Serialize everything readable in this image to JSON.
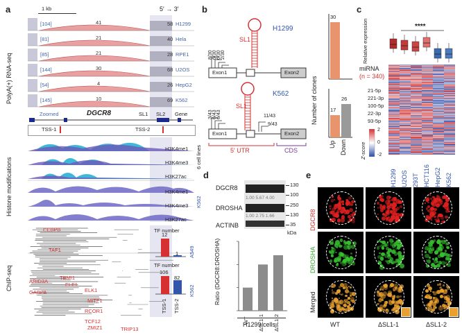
{
  "panels": {
    "a": "a",
    "b": "b",
    "c": "c",
    "d": "d",
    "e": "e"
  },
  "panel_a": {
    "scale": "1 kb",
    "direction": "5′ → 3′",
    "rnaseq_label": "PolyA(+) RNA-seq",
    "lanes": [
      {
        "range": "[104]",
        "left": "41",
        "right": "58",
        "cell": "H1299"
      },
      {
        "range": "[81]",
        "left": "21",
        "right": "40",
        "cell": "Hela"
      },
      {
        "range": "[85]",
        "left": "21",
        "right": "28",
        "cell": "RPE1"
      },
      {
        "range": "[144]",
        "left": "30",
        "right": "68",
        "cell": "U2OS"
      },
      {
        "range": "[54]",
        "left": "4",
        "right": "26",
        "cell": "HepG2"
      },
      {
        "range": "[145]",
        "left": "10",
        "right": "69",
        "cell": "K562"
      }
    ],
    "zoomed": "Zoomed",
    "gene": "DGCR8",
    "sl1": "SL1",
    "sl2": "SL2",
    "gene_label": "Gene",
    "tss1": "TSS-1",
    "tss2": "TSS-2",
    "histone_label": "Histone modifications",
    "marks_6": [
      "H3K4me1",
      "H3K4me3",
      "H3K27ac"
    ],
    "six_cells": "6 cell lines",
    "marks_k562": [
      "H3K4me1",
      "H3K4me3",
      "H3K27ac"
    ],
    "k562": "K562",
    "chip_label": "ChIP-seq",
    "tf_a549": [
      "CEBPB",
      "TAF1"
    ],
    "tf_k562": [
      "ARID3A",
      "GABPA",
      "TBMI1",
      "ELF1",
      "ELK1",
      "MITF1",
      "RCOR1",
      "TCF12",
      "ZMIZ1",
      "TRIP13"
    ],
    "tf_number": "TF number",
    "a549": "A549",
    "bar_a549": {
      "tss1": "12",
      "tss2": "1"
    },
    "bar_k562": {
      "tss1": "106",
      "tss2": "82"
    },
    "tss_axis": [
      "TSS-1",
      "TSS-2"
    ]
  },
  "panel_b": {
    "h1299": "H1299",
    "k562": "K562",
    "sl1": "SL1",
    "h_counts": [
      "8/30",
      "6/30",
      "6/30",
      "2/30"
    ],
    "k_counts_left": [
      "3/43",
      "6/43",
      "6/43"
    ],
    "k_counts_right": [
      "11/43",
      "9/43"
    ],
    "exon1": "Exon1",
    "exon2": "Exon2",
    "utr": "5′ UTR",
    "cds": "CDS",
    "ylabel": "Number of clones",
    "top_bar": "30",
    "bottom_up": "17",
    "bottom_down": "26",
    "x_up": "Up",
    "x_down": "Down"
  },
  "panel_c": {
    "ylabel": "Relative expression",
    "sig": "****",
    "mirna": "miRNA",
    "n": "(n = 340)",
    "mirs": [
      "21-5p",
      "221-3p",
      "100-5p",
      "22-3p",
      "93-5p"
    ],
    "zscore": "Z-score",
    "zmin": "-2",
    "zzero": "0",
    "zmax": "2",
    "cells": [
      "H1299",
      "U2OS",
      "293T",
      "HCT116",
      "HepG2",
      "K562"
    ]
  },
  "panel_d": {
    "chart_data": {
      "type": "bar",
      "categories": [
        "WT",
        "ΔSL1-1",
        "ΔSL1-2"
      ],
      "values": [
        1.0,
        2.0,
        2.4
      ],
      "ylabel": "Ratio (DGCR8:DROSHA)",
      "ylim": [
        0,
        3
      ],
      "xlabel": "H1299 cells"
    },
    "dgcr8": "DGCR8",
    "drosha": "DROSHA",
    "actinb": "ACTINB",
    "dgcr8_vals": "1.00 5.67 4.00",
    "drosha_vals": "1.00 2.75 1.66",
    "kda": "kDa",
    "mw": [
      "130",
      "100",
      "250",
      "130",
      "35"
    ],
    "cells": "H1299 cells"
  },
  "panel_e": {
    "dgcr8": "DGCR8",
    "drosha": "DROSHA",
    "merged": "Merged",
    "cols": [
      "WT",
      "ΔSL1-1",
      "ΔSL1-2"
    ]
  },
  "colors": {
    "red": "#d63030",
    "blue": "#3355aa",
    "salmon": "#e8956e",
    "grey": "#9a9a9a"
  }
}
